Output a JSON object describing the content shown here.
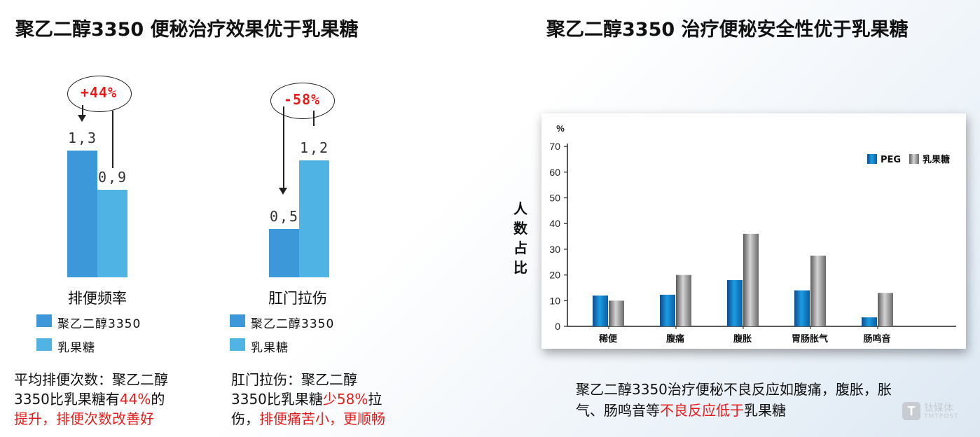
{
  "left_title": "聚乙二醇3350 便秘治疗效果优于乳果糖",
  "right_title": "聚乙二醇3350 治疗便秘安全性优于乳果糖",
  "colors": {
    "peg": "#3d98da",
    "lactulose": "#4fb3e3",
    "red": "#e81b1b"
  },
  "chart_data": [
    {
      "type": "bar",
      "categories": [
        "排便频率"
      ],
      "series": [
        {
          "name": "聚乙二醇3350",
          "values": [
            1.3
          ],
          "label": "1,3"
        },
        {
          "name": "乳果糖",
          "values": [
            0.9
          ],
          "label": "0,9"
        }
      ],
      "change": "+44%"
    },
    {
      "type": "bar",
      "categories": [
        "肛门拉伤"
      ],
      "series": [
        {
          "name": "聚乙二醇3350",
          "values": [
            0.5
          ],
          "label": "0,5"
        },
        {
          "name": "乳果糖",
          "values": [
            1.2
          ],
          "label": "1,2"
        }
      ],
      "change": "-58%"
    },
    {
      "type": "bar",
      "ylabel_unit": "%",
      "ylabel": "人数占比",
      "ylim": [
        0,
        70
      ],
      "yticks": [
        0,
        10,
        20,
        30,
        40,
        50,
        60,
        70
      ],
      "categories": [
        "稀便",
        "腹痛",
        "腹胀",
        "胃肠胀气",
        "肠鸣音"
      ],
      "series": [
        {
          "name": "PEG",
          "values": [
            12,
            12.3,
            18,
            14,
            3.5
          ]
        },
        {
          "name": "乳果糖",
          "values": [
            10,
            20,
            36,
            27.5,
            13
          ]
        }
      ],
      "legend": "top-right"
    }
  ],
  "left_note": {
    "p1": "平均排便次数：聚乙二醇",
    "p2": "3350比乳果糖有",
    "p2_red": "44%",
    "p2_tail": "的",
    "p3_red": "提升，排便次数改善好"
  },
  "mid_note": {
    "p1": "肛门拉伤：聚乙二醇",
    "p2": "3350比乳果糖",
    "p2_red": "少58%",
    "p2_tail": "拉",
    "p3": "伤，",
    "p3_red": "排便痛苦小，更顺畅"
  },
  "caption": {
    "line1": "聚乙二醇3350治疗便秘不良反应如腹痛，腹胀，胀",
    "line2a": "气、肠鸣音等",
    "line2_red": "不良反应低于",
    "line2b": "乳果糖"
  },
  "watermark": {
    "brand": "钛媒体",
    "sub": "TMTPOST"
  }
}
